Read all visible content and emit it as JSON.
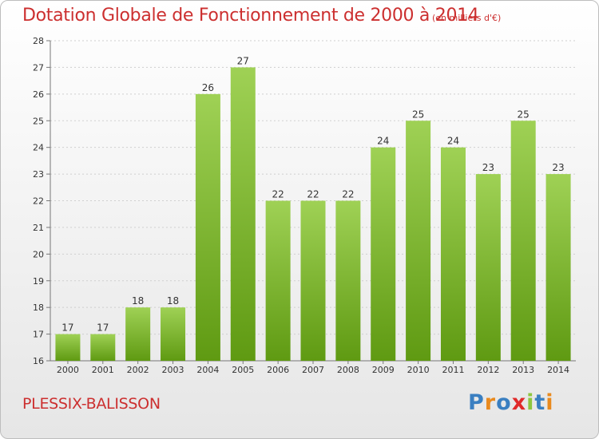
{
  "title": "Dotation Globale de Fonctionnement de 2000 à 2014",
  "subtitle": "(en milliers d'€)",
  "place": "PLESSIX-BALISSON",
  "logo": {
    "text": "Proxiti",
    "letters": [
      "P",
      "r",
      "o",
      "x",
      "i",
      "t",
      "i"
    ],
    "colors": [
      "#3a7fc1",
      "#e98a1e",
      "#3a7fc1",
      "#e02a2a",
      "#8dc63f",
      "#3a7fc1",
      "#e98a1e"
    ]
  },
  "colors": {
    "bar_top": "#9fd155",
    "bar_bottom": "#5f9a12",
    "title": "#cc2f2f"
  },
  "chart_data": {
    "type": "bar",
    "categories": [
      "2000",
      "2001",
      "2002",
      "2003",
      "2004",
      "2005",
      "2006",
      "2007",
      "2008",
      "2009",
      "2010",
      "2011",
      "2012",
      "2013",
      "2014"
    ],
    "values": [
      17,
      17,
      18,
      18,
      26,
      27,
      22,
      22,
      22,
      24,
      25,
      24,
      23,
      25,
      23
    ],
    "ylim": [
      16,
      28
    ],
    "yticks": [
      16,
      17,
      18,
      19,
      20,
      21,
      22,
      23,
      24,
      25,
      26,
      27,
      28
    ],
    "grid": true,
    "title": "Dotation Globale de Fonctionnement de 2000 à 2014",
    "subtitle": "(en milliers d'€)"
  }
}
